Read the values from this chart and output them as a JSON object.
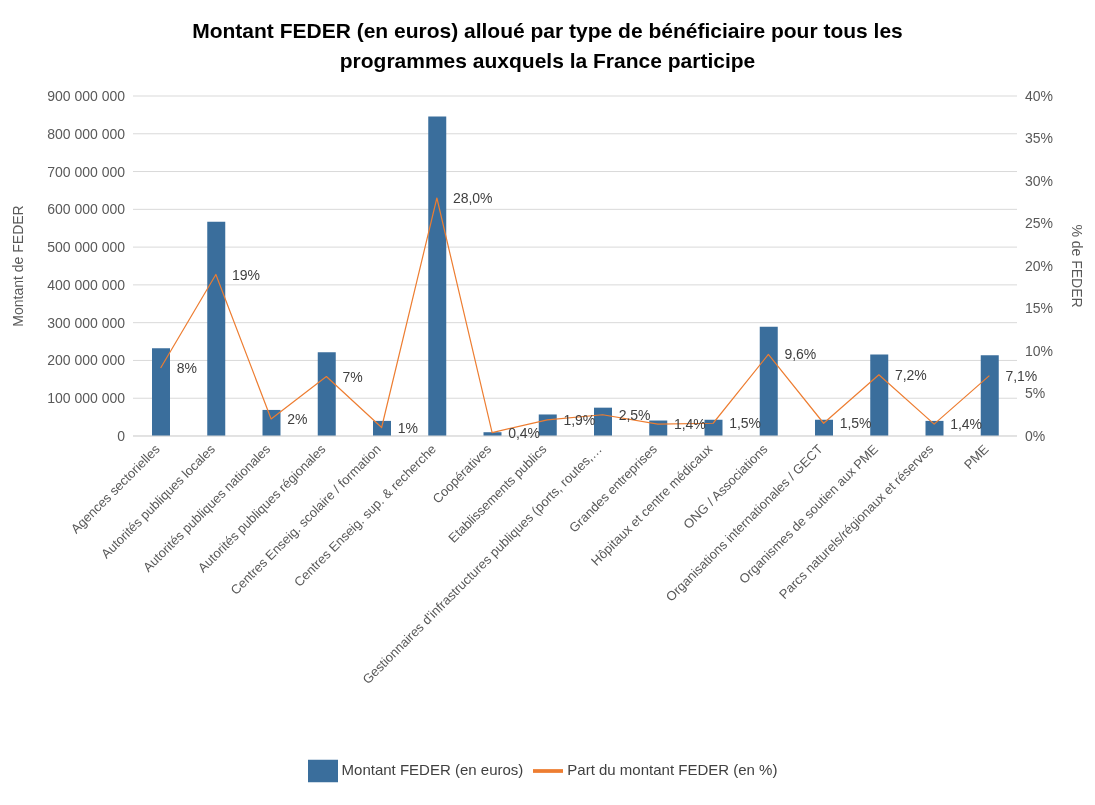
{
  "chart_data": {
    "type": "bar",
    "title": "Montant FEDER (en euros) alloué par type de bénéficiaire pour tous les programmes auxquels la France participe",
    "ylabel": "Montant de FEDER",
    "y2label": "% de FEDER",
    "categories": [
      "Agences sectorielles",
      "Autorités publiques locales",
      "Autorités publiques nationales",
      "Autorités publiques régionales",
      "Centres Enseig. scolaire / formation",
      "Centres Enseig. sup. & recherche",
      "Coopératives",
      "Etablissements publics",
      "Gestionnaires d'infrastructures publiques (ports, routes,…",
      "Grandes entreprises",
      "Hôpitaux et centre médicaux",
      "ONG / Associations",
      "Organisations internationales / GECT",
      "Organismes de soutien aux PME",
      "Parcs naturels/régionaux et réserves",
      "PME"
    ],
    "series": [
      {
        "name": "Montant FEDER (en euros)",
        "color": "#3a6e9c",
        "values": [
          232000000,
          567000000,
          69000000,
          222000000,
          40000000,
          846000000,
          10000000,
          57000000,
          75000000,
          41000000,
          43000000,
          289000000,
          43000000,
          216000000,
          40000000,
          214000000
        ]
      },
      {
        "name": "Part du montant FEDER (en %)",
        "type": "line",
        "axis": "y2",
        "color": "#ed7d31",
        "values": [
          8,
          19,
          2,
          7,
          1,
          28.0,
          0.4,
          1.9,
          2.5,
          1.4,
          1.5,
          9.6,
          1.5,
          7.2,
          1.4,
          7.1
        ],
        "value_labels": [
          "8%",
          "19%",
          "2%",
          "7%",
          "1%",
          "28,0%",
          "0,4%",
          "1,9%",
          "2,5%",
          "1,4%",
          "1,5%",
          "9,6%",
          "1,5%",
          "7,2%",
          "1,4%",
          "7,1%"
        ]
      }
    ],
    "ylim": [
      0,
      900000000
    ],
    "yticks": [
      {
        "value": 0,
        "label": "0"
      },
      {
        "value": 100000000,
        "label": "100 000 000"
      },
      {
        "value": 200000000,
        "label": "200 000 000"
      },
      {
        "value": 300000000,
        "label": "300 000 000"
      },
      {
        "value": 400000000,
        "label": "400 000 000"
      },
      {
        "value": 500000000,
        "label": "500 000 000"
      },
      {
        "value": 600000000,
        "label": "600 000 000"
      },
      {
        "value": 700000000,
        "label": "700 000 000"
      },
      {
        "value": 800000000,
        "label": "800 000 000"
      },
      {
        "value": 900000000,
        "label": "900 000 000"
      }
    ],
    "y2lim": [
      0,
      40
    ],
    "y2ticks": [
      {
        "value": 0,
        "label": "0%"
      },
      {
        "value": 5,
        "label": "5%"
      },
      {
        "value": 10,
        "label": "10%"
      },
      {
        "value": 15,
        "label": "15%"
      },
      {
        "value": 20,
        "label": "20%"
      },
      {
        "value": 25,
        "label": "25%"
      },
      {
        "value": 30,
        "label": "30%"
      },
      {
        "value": 35,
        "label": "35%"
      },
      {
        "value": 40,
        "label": "40%"
      }
    ],
    "grid": "y",
    "legend": "bottom",
    "marker": "none",
    "line_style": "solid"
  }
}
